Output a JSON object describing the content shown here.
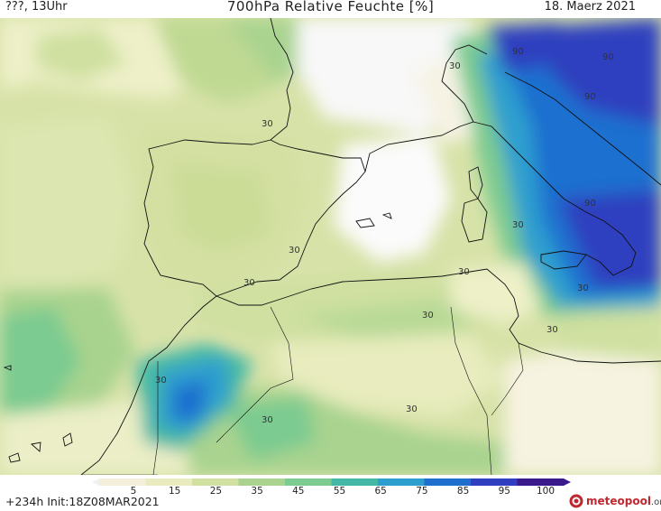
{
  "header": {
    "left": "???, 13Uhr",
    "center": "700hPa Relative Feuchte [%]",
    "right": "18. Maerz 2021"
  },
  "footer": {
    "run_info": "+234h  Init:18Z08MAR2021",
    "logo_main": "meteopool",
    "logo_suffix": ".org"
  },
  "colorbar": {
    "ticks": [
      "5",
      "15",
      "25",
      "35",
      "45",
      "55",
      "65",
      "75",
      "85",
      "95",
      "100"
    ],
    "colors": [
      "#ffffff",
      "#f4efdc",
      "#e8ecbe",
      "#cfe0a0",
      "#a9d38f",
      "#7ccb90",
      "#45b8a5",
      "#2d9fcf",
      "#1f6fcf",
      "#2f3fbf",
      "#3a1a8a"
    ]
  },
  "contour_labels": [
    "90",
    "30",
    "90",
    "90",
    "30",
    "90",
    "30",
    "30",
    "30",
    "30",
    "30",
    "30",
    "30",
    "30",
    "30",
    "30"
  ]
}
